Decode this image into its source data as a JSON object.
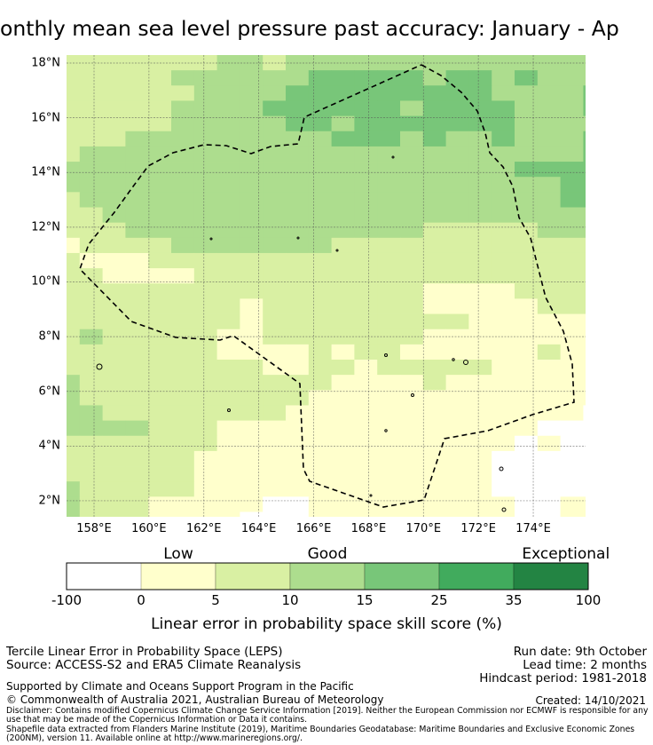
{
  "title": "onthly mean sea level pressure past accuracy: January - Ap",
  "map": {
    "lon_ticks": [
      {
        "value": 158,
        "label": "158°E"
      },
      {
        "value": 160,
        "label": "160°E"
      },
      {
        "value": 162,
        "label": "162°E"
      },
      {
        "value": 164,
        "label": "164°E"
      },
      {
        "value": 166,
        "label": "166°E"
      },
      {
        "value": 168,
        "label": "168°E"
      },
      {
        "value": 170,
        "label": "170°E"
      },
      {
        "value": 172,
        "label": "172°E"
      },
      {
        "value": 174,
        "label": "174°E"
      }
    ],
    "lat_ticks": [
      {
        "value": 18,
        "label": "18°N"
      },
      {
        "value": 16,
        "label": "16°N"
      },
      {
        "value": 14,
        "label": "14°N"
      },
      {
        "value": 12,
        "label": "12°N"
      },
      {
        "value": 10,
        "label": "10°N"
      },
      {
        "value": 8,
        "label": "8°N"
      },
      {
        "value": 6,
        "label": "6°N"
      },
      {
        "value": 4,
        "label": "4°N"
      },
      {
        "value": 2,
        "label": "2°N"
      }
    ],
    "skill_category_grid": [
      "111111122122222222222222",
      "111112222223333323323222",
      "111111222233333333322223",
      "111112222333333233332223",
      "111112222233233333332222",
      "111222222222333232232223",
      "122222222222222222222223",
      "222222222222222222223333",
      "222222222222222222222233",
      "122222222222222222222233",
      "112222222222222222222222",
      "111222222222222211111222",
      "011112222222111111111111",
      "100011111111111111111111",
      "110000111111111111111111",
      "111111111111111100001111",
      "111111110111111100000111",
      "111111110111111111000000",
      "121111100111111100000000",
      "111111100001011000000100",
      "111111111001101111100000",
      "211111111111000010000000",
      "211111111110000000000000",
      "22111111110000000000000W",
      "222211100000000000000WWW",
      "11111110000000000000W0WWW",
      "1111110000000000000WWWWW",
      "1111110000000000000WWWWW",
      "2111110000000000000WWWWW",
      "211100000WW000000000WW00",
      "21110000WWW000000000WW00"
    ]
  },
  "colorbar": {
    "colors": [
      "#ffffff",
      "#ffffcc",
      "#d9f0a3",
      "#addd8e",
      "#78c679",
      "#41ab5d",
      "#238443"
    ],
    "ticks": [
      "-100",
      "0",
      "5",
      "10",
      "15",
      "25",
      "35",
      "100"
    ],
    "categories": [
      {
        "label": "Low",
        "pos": 1.5
      },
      {
        "label": "Good",
        "pos": 3.5
      },
      {
        "label": "Exceptional",
        "pos": 6.7
      }
    ],
    "label": "Linear error in probability space skill score (%)"
  },
  "footer": {
    "method": "Tercile Linear Error in Probability Space (LEPS)",
    "source": "Source: ACCESS-S2 and ERA5 Climate Reanalysis",
    "run_date": "Run date: 9th October",
    "lead_time": "Lead time: 2 months",
    "hindcast": "Hindcast period: 1981-2018",
    "support": "Supported by Climate and Oceans Support Program in the Pacific",
    "copyright": "© Commonwealth of Australia 2021, Australian Bureau of Meteorology",
    "created": "Created: 14/10/2021",
    "disclaimer": "Disclaimer: Contains modified Copernicus Climate Change Service Information [2019]. Neither the European Commission nor ECMWF is responsible for any use that may be made of the Copernicus Information or Data it contains.",
    "shapefile": "Shapefile data extracted from Flanders Marine Institute (2019), Maritime Boundaries Geodatabase: Maritime Boundaries and Exclusive Economic Zones (200NM), version 11. Available online at http://www.marineregions.org/."
  }
}
